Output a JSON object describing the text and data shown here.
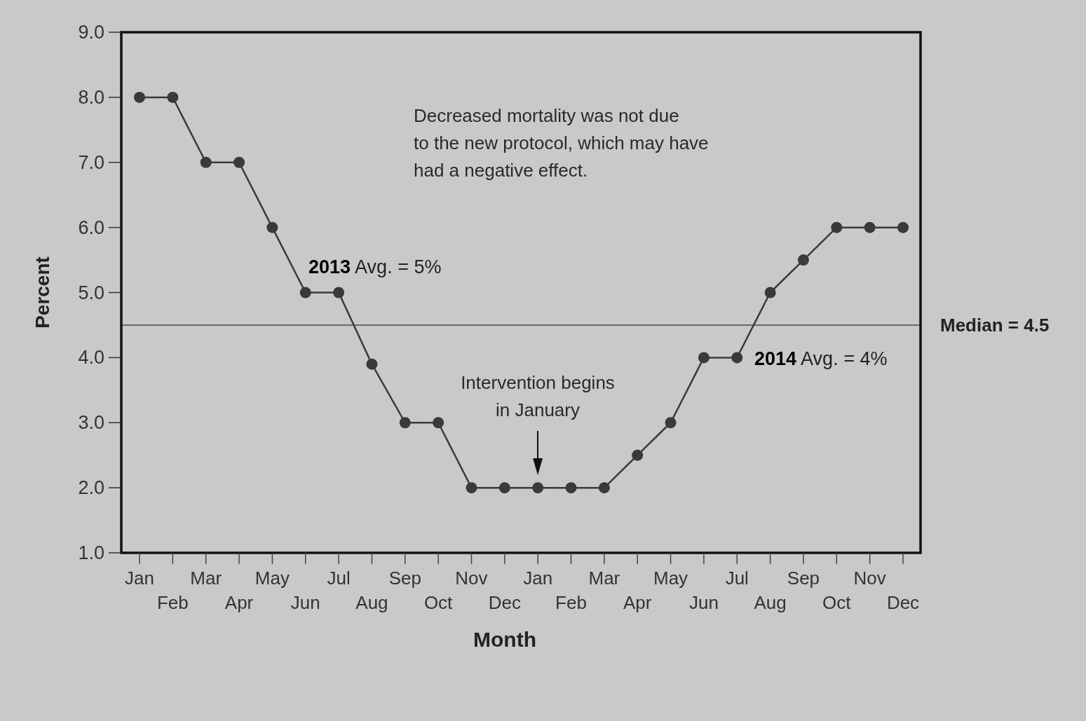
{
  "chart_data": {
    "type": "line",
    "xlabel": "Month",
    "ylabel": "Percent",
    "categories": [
      "Jan",
      "Feb",
      "Mar",
      "Apr",
      "May",
      "Jun",
      "Jul",
      "Aug",
      "Sep",
      "Oct",
      "Nov",
      "Dec",
      "Jan",
      "Feb",
      "Mar",
      "Apr",
      "May",
      "Jun",
      "Jul",
      "Aug",
      "Sep",
      "Oct",
      "Nov",
      "Dec"
    ],
    "series": [
      {
        "color": "#3a3a3a",
        "values": [
          8,
          8,
          7,
          7,
          6,
          5,
          5,
          3.9,
          3,
          3,
          2,
          2,
          2,
          2,
          2,
          2.5,
          3,
          4,
          4,
          5,
          5.5,
          6,
          6,
          6
        ]
      }
    ],
    "ylim": [
      1,
      9
    ],
    "yticks": [
      {
        "value": 1,
        "label": "1.0"
      },
      {
        "value": 2,
        "label": "2.0"
      },
      {
        "value": 3,
        "label": "3.0"
      },
      {
        "value": 4,
        "label": "4.0"
      },
      {
        "value": 5,
        "label": "5.0"
      },
      {
        "value": 6,
        "label": "6.0"
      },
      {
        "value": 7,
        "label": "7.0"
      },
      {
        "value": 8,
        "label": "8.0"
      },
      {
        "value": 9,
        "label": "9.0"
      }
    ],
    "ref_lines": [
      {
        "axis": "y",
        "value": 4.5,
        "label": "Median = 4.5",
        "color": "#6a6a6a"
      }
    ],
    "annotations": [
      "Decreased mortality was not due\nto the new protocol, which may have\nhad a negative effect.",
      "2013 Avg. = 5%",
      "2014 Avg. = 4%",
      "Intervention begins\nin January"
    ],
    "marker": "circle",
    "line_style": "solid",
    "grid": false
  }
}
